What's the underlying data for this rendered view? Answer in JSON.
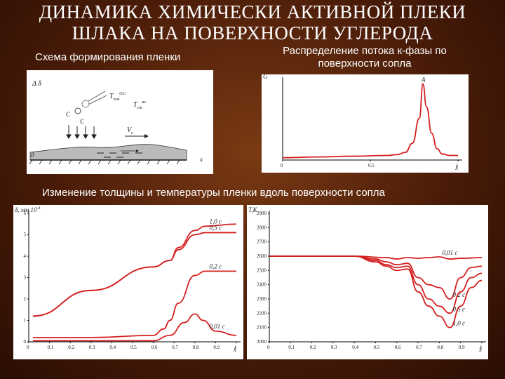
{
  "slide": {
    "title_line1": "ДИНАМИКА ХИМИЧЕСКИ АКТИВНОЙ ПЛЕКИ",
    "title_line2": "ШЛАКА НА ПОВЕРХНОСТИ УГЛЕРОДА",
    "caption_scheme": "Схема формирования пленки",
    "caption_flux_1": "Распределение потока к-фазы по",
    "caption_flux_2": "поверхности сопла",
    "caption_thickness": "Изменение толщины и температуры пленки вдоль поверхности сопла"
  },
  "scheme": {
    "label_top": "Δ δ",
    "label_tpov": "T",
    "label_tpov_sup": "ОU",
    "label_tpov_sub": "пов",
    "label_te": "T",
    "label_te_sup": "ве",
    "label_te_sub": "ст",
    "label_c1": "С",
    "label_c2": "С",
    "label_v": "V",
    "label_v_sub": "е",
    "label_zero": "0",
    "label_x": "x"
  },
  "chart_data": [
    {
      "type": "line",
      "name": "flux",
      "title": "",
      "xlabel": "x̄",
      "ylabel": "G",
      "xlim": [
        0,
        1
      ],
      "x_ticks": [
        "0",
        "0.5",
        "1"
      ],
      "series": [
        {
          "x": [
            0,
            0.2,
            0.4,
            0.6,
            0.65,
            0.7,
            0.74,
            0.78,
            0.8,
            0.82,
            0.85,
            0.88,
            0.91,
            0.95,
            1.0
          ],
          "values": [
            0.03,
            0.04,
            0.05,
            0.06,
            0.07,
            0.1,
            0.22,
            0.55,
            1.0,
            0.7,
            0.35,
            0.15,
            0.08,
            0.06,
            0.06
          ]
        }
      ],
      "annotation": "A"
    },
    {
      "type": "line",
      "name": "thickness",
      "ylabel": "δ, мм 10",
      "ylabel_exp": "-4",
      "xlabel": "x̄",
      "y_ticks": [
        "6",
        "5",
        "4",
        "3",
        "2",
        "1",
        "0"
      ],
      "x_ticks": [
        "0",
        "0.1",
        "0.2",
        "0.3",
        "0.4",
        "0.5",
        "0.6",
        "0.7",
        "0.8",
        "0.9",
        "1"
      ],
      "ylim": [
        0,
        6
      ],
      "xlim": [
        0,
        1
      ],
      "series": [
        {
          "name": "1,0 с",
          "x": [
            0.02,
            0.3,
            0.6,
            0.68,
            0.72,
            0.8,
            0.85,
            1.0
          ],
          "values": [
            1.2,
            2.4,
            3.5,
            3.8,
            4.4,
            5.2,
            5.4,
            5.5
          ]
        },
        {
          "name": "0,5 с",
          "x": [
            0.02,
            0.3,
            0.6,
            0.68,
            0.72,
            0.8,
            0.85,
            1.0
          ],
          "values": [
            1.2,
            2.4,
            3.5,
            3.8,
            4.3,
            5.0,
            5.1,
            5.1
          ]
        },
        {
          "name": "0,2 с",
          "x": [
            0.02,
            0.3,
            0.6,
            0.65,
            0.68,
            0.72,
            0.8,
            0.85,
            1.0
          ],
          "values": [
            0.2,
            0.2,
            0.3,
            0.6,
            1.0,
            1.8,
            3.1,
            3.3,
            3.3
          ]
        },
        {
          "name": "0,01 с",
          "x": [
            0.02,
            0.3,
            0.6,
            0.68,
            0.75,
            0.8,
            0.84,
            0.9,
            1.0
          ],
          "values": [
            0.05,
            0.05,
            0.05,
            0.3,
            0.9,
            1.3,
            1.0,
            0.5,
            0.3
          ]
        }
      ]
    },
    {
      "type": "line",
      "name": "temperature",
      "ylabel": "T,K",
      "xlabel": "x̄",
      "y_ticks": [
        "2900",
        "2800",
        "2700",
        "2600",
        "2500",
        "2400",
        "2300",
        "2200",
        "2100",
        "2000"
      ],
      "x_ticks": [
        "0",
        "0.1",
        "0.2",
        "0.3",
        "0.4",
        "0.5",
        "0.6",
        "0.7",
        "0.8",
        "0.9",
        "1"
      ],
      "ylim": [
        2000,
        2900
      ],
      "xlim": [
        0,
        1
      ],
      "series": [
        {
          "name": "0,01 с",
          "x": [
            0,
            0.4,
            0.55,
            0.6,
            0.65,
            0.7,
            0.75,
            0.8,
            0.85,
            0.9,
            1.0
          ],
          "values": [
            2600,
            2600,
            2590,
            2580,
            2590,
            2585,
            2590,
            2595,
            2580,
            2585,
            2590
          ]
        },
        {
          "name": "0,2 с",
          "x": [
            0,
            0.4,
            0.5,
            0.55,
            0.6,
            0.65,
            0.7,
            0.75,
            0.8,
            0.85,
            0.9,
            0.95,
            1.0
          ],
          "values": [
            2600,
            2600,
            2580,
            2560,
            2540,
            2550,
            2450,
            2400,
            2380,
            2300,
            2450,
            2520,
            2530
          ]
        },
        {
          "name": "0,5 с",
          "x": [
            0,
            0.4,
            0.5,
            0.55,
            0.6,
            0.65,
            0.7,
            0.75,
            0.8,
            0.85,
            0.9,
            0.95,
            1.0
          ],
          "values": [
            2600,
            2600,
            2570,
            2540,
            2520,
            2530,
            2400,
            2300,
            2250,
            2200,
            2350,
            2450,
            2480
          ]
        },
        {
          "name": "1,0 с",
          "x": [
            0,
            0.4,
            0.5,
            0.55,
            0.6,
            0.65,
            0.7,
            0.75,
            0.8,
            0.85,
            0.9,
            0.95,
            1.0
          ],
          "values": [
            2600,
            2600,
            2560,
            2530,
            2500,
            2510,
            2350,
            2250,
            2180,
            2100,
            2250,
            2380,
            2430
          ]
        }
      ]
    }
  ]
}
